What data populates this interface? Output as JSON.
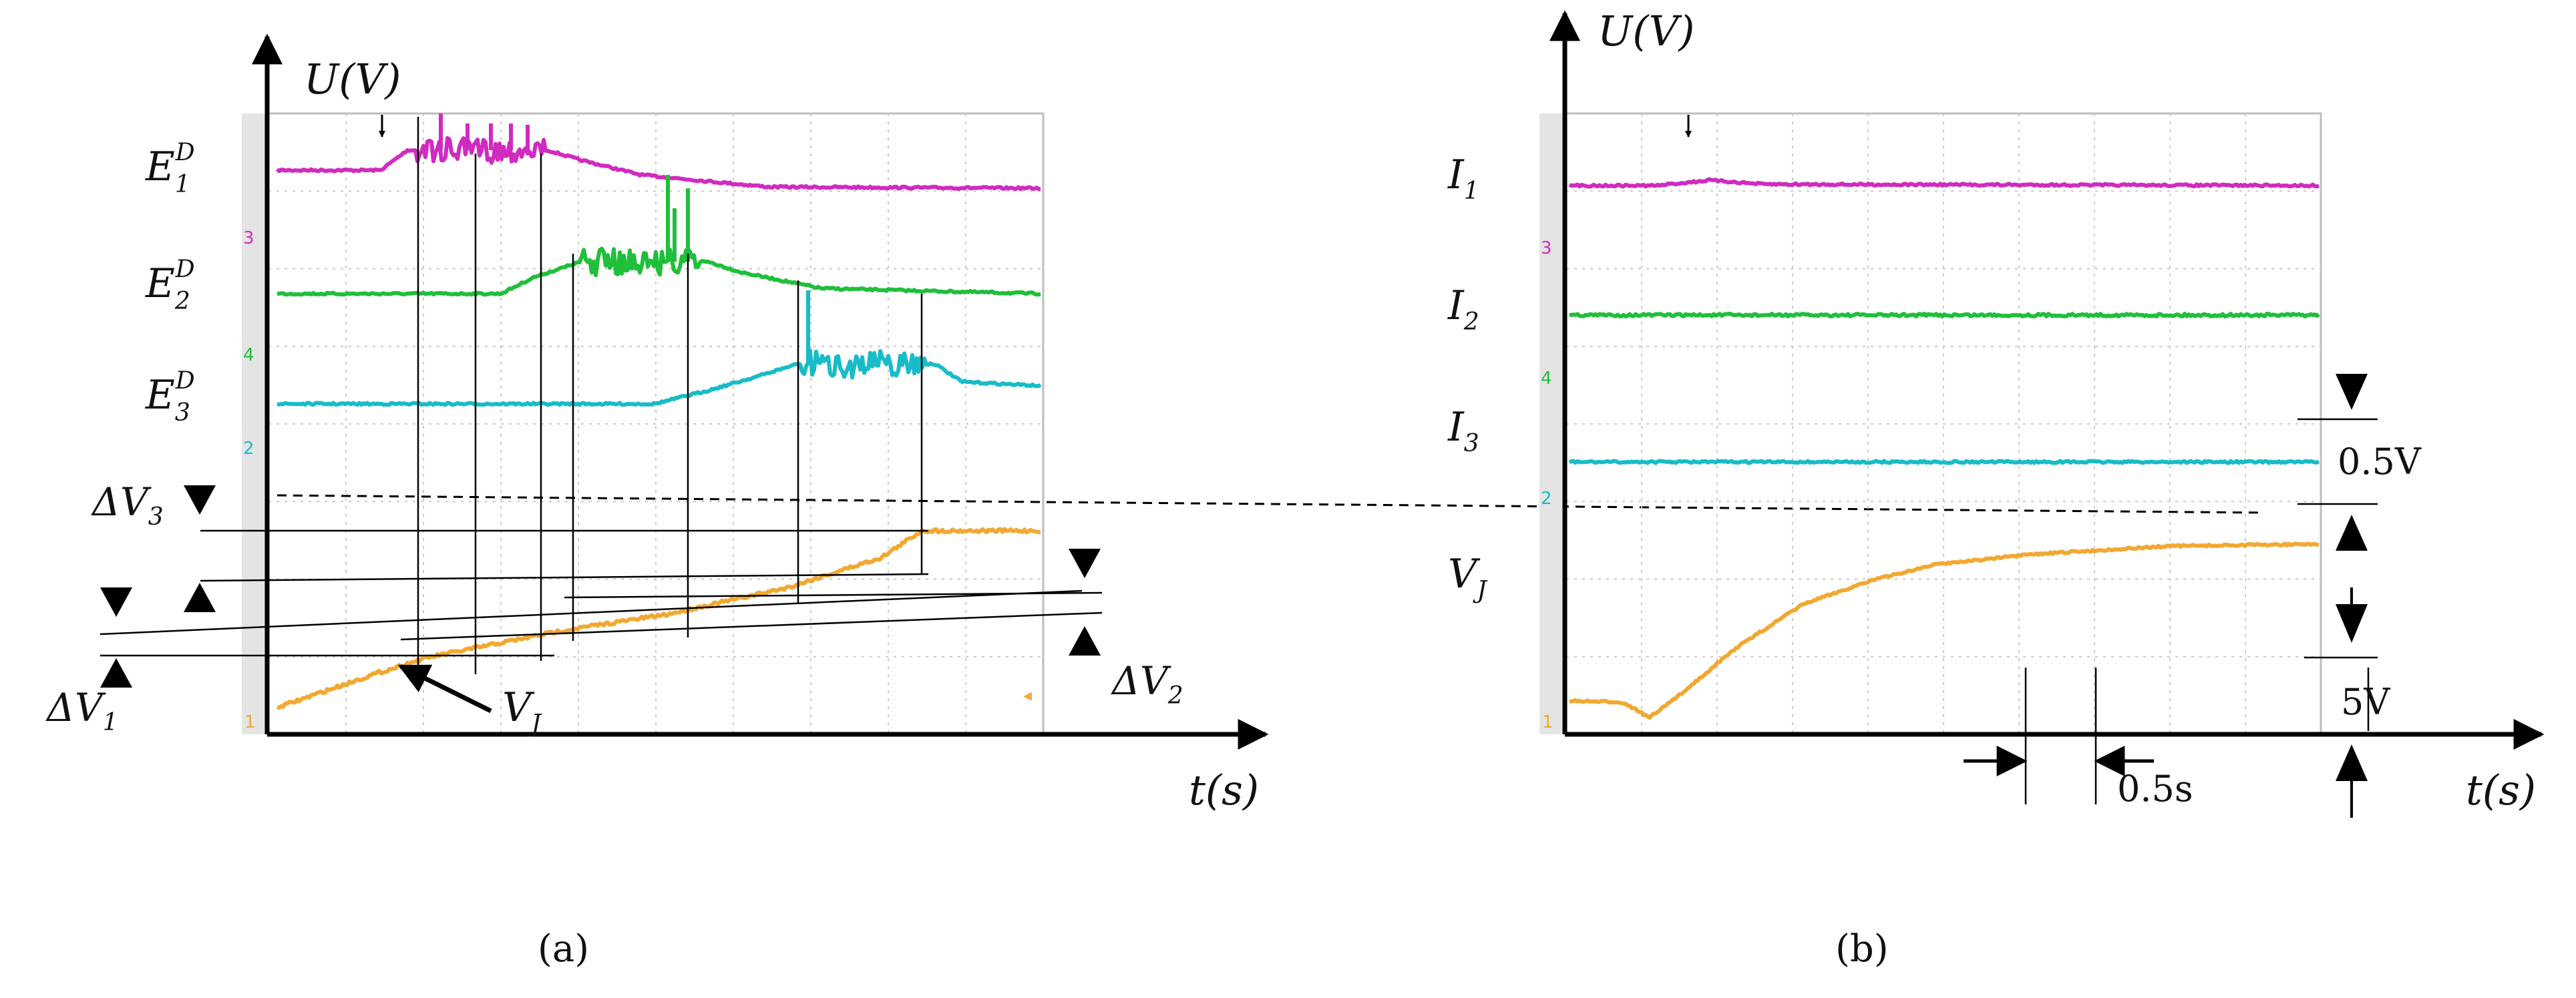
{
  "colors": {
    "magenta": "#d12ac0",
    "green": "#1fbf3a",
    "cyan": "#17bcc8",
    "orange": "#f2a830",
    "axis": "#000000",
    "grid": "#c9c9c9"
  },
  "panel_a": {
    "caption": "(a)",
    "y_axis_label": "U(V)",
    "x_axis_label": "t(s)",
    "traces": [
      {
        "label_base": "E",
        "label_sub": "1",
        "label_sup": "D",
        "channel": "3"
      },
      {
        "label_base": "E",
        "label_sub": "2",
        "label_sup": "D",
        "channel": "4"
      },
      {
        "label_base": "E",
        "label_sub": "3",
        "label_sup": "D",
        "channel": "2"
      },
      {
        "label_base": "V",
        "label_sub": "J",
        "channel": "1"
      }
    ],
    "annotations": [
      {
        "label_base": "ΔV",
        "label_sub": "3"
      },
      {
        "label_base": "ΔV",
        "label_sub": "1"
      },
      {
        "label_base": "ΔV",
        "label_sub": "2"
      }
    ]
  },
  "panel_b": {
    "caption": "(b)",
    "y_axis_label": "U(V)",
    "x_axis_label": "t(s)",
    "traces": [
      {
        "label_base": "I",
        "label_sub": "1",
        "channel": "3"
      },
      {
        "label_base": "I",
        "label_sub": "2",
        "channel": "4"
      },
      {
        "label_base": "I",
        "label_sub": "3",
        "channel": "2"
      },
      {
        "label_base": "V",
        "label_sub": "J",
        "channel": "1"
      }
    ],
    "scale_voltage_small": "0.5V",
    "scale_voltage_large": "5V",
    "scale_time": "0.5s"
  }
}
